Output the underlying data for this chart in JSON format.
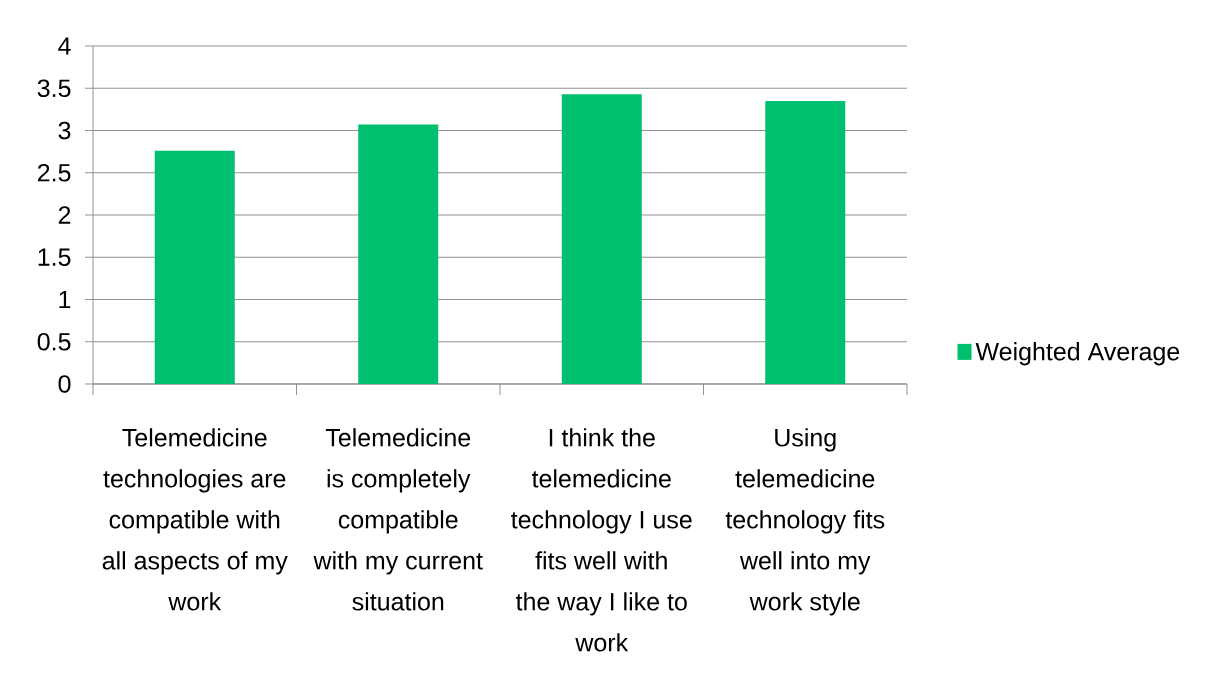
{
  "chart_data": {
    "type": "bar",
    "categories": [
      "Telemedicine technologies are compatible with all aspects of my work",
      "Telemedicine is completely compatible with my current situation",
      "I think the telemedicine technology I use fits well with the way I like to work",
      "Using telemedicine technology fits well into my work style"
    ],
    "series": [
      {
        "name": "Weighted Average",
        "color": "#00bf6f",
        "values": [
          2.76,
          3.07,
          3.43,
          3.35
        ]
      }
    ],
    "ylim": [
      0,
      4
    ],
    "yticks": [
      0,
      0.5,
      1,
      1.5,
      2,
      2.5,
      3,
      3.5,
      4
    ],
    "grid": "y",
    "legend": "right"
  }
}
